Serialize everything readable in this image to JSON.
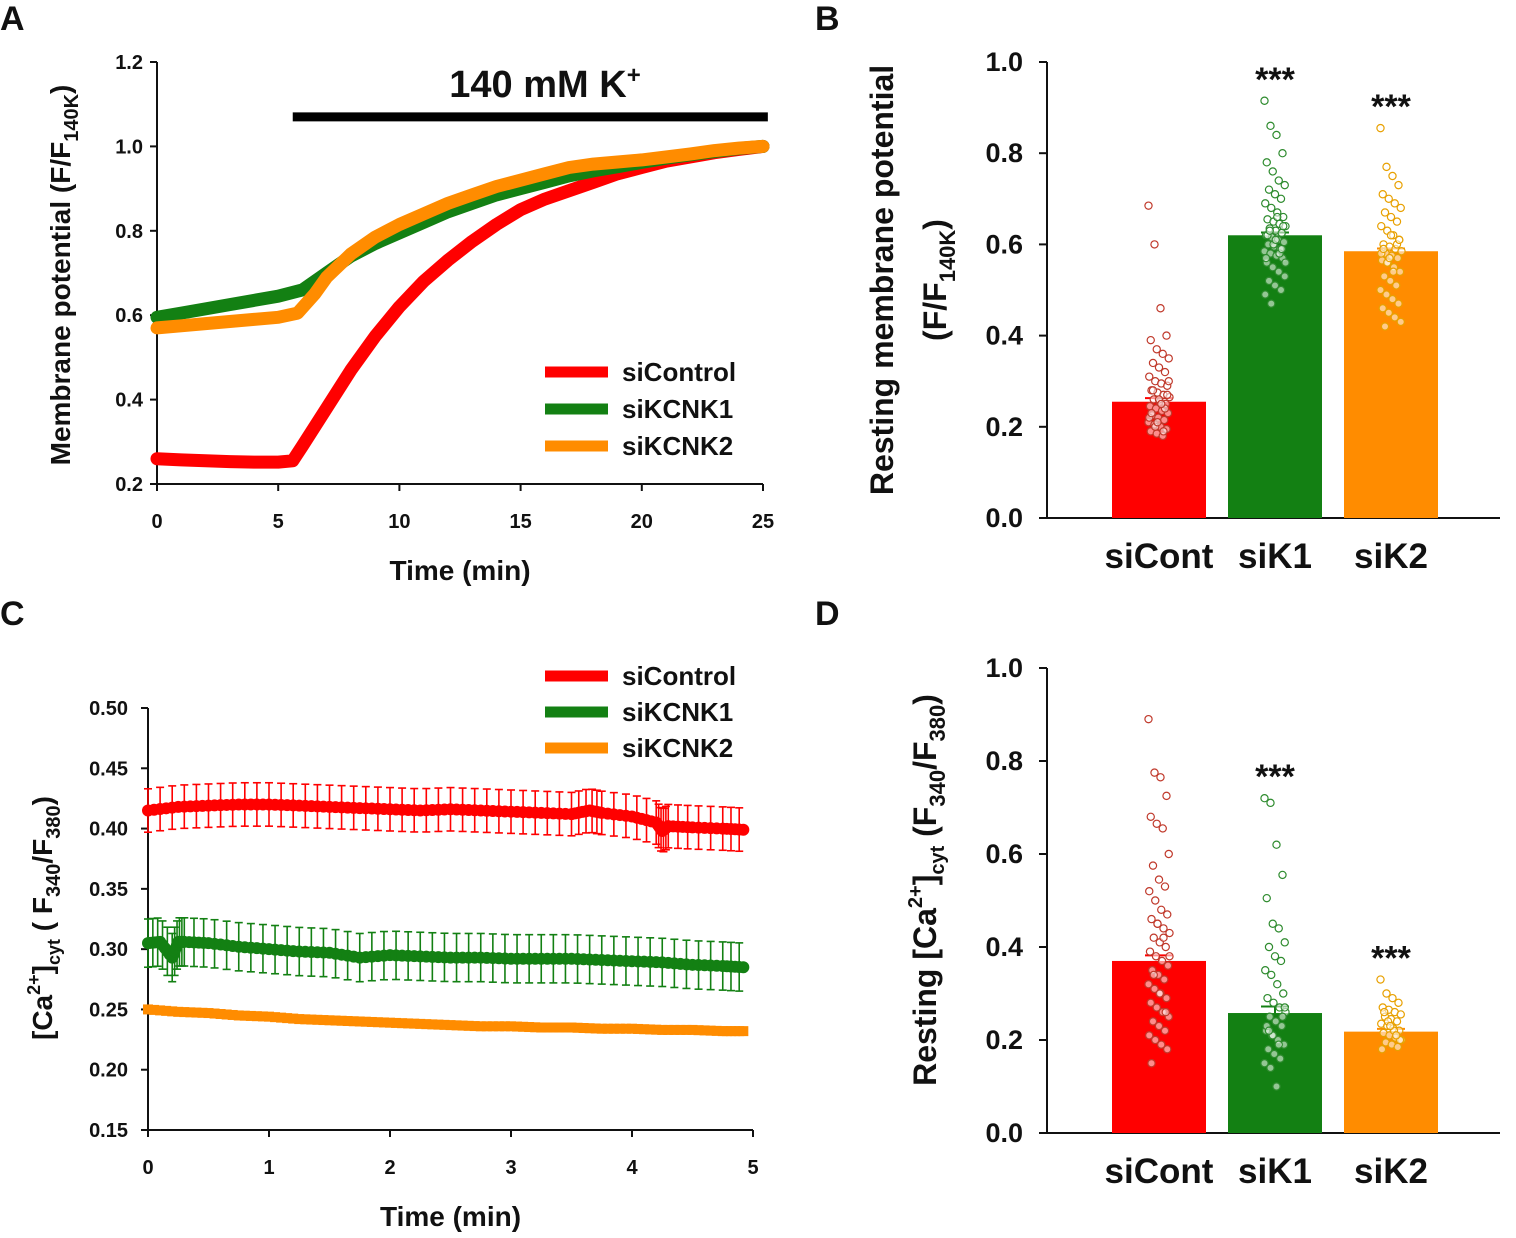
{
  "colors": {
    "siControl": "#ff0000",
    "siKCNK1": "#138013",
    "siKCNK2": "#ff8c00",
    "axis": "#111111",
    "sig_dots_red": "#c0392b",
    "sig_dots_green": "#2e8b2e",
    "sig_dots_orange": "#e8a000"
  },
  "chart_data": [
    {
      "panel": "A",
      "type": "line",
      "xlabel": "Time (min)",
      "ylabel": "Membrane potential (F/F140K)",
      "ylabel_main": "Membrane potential (F/F",
      "ylabel_sub": "140K",
      "ylabel_close": ")",
      "xlim": [
        0,
        25
      ],
      "ylim": [
        0.2,
        1.2
      ],
      "xticks": [
        "0",
        "5",
        "10",
        "15",
        "20",
        "25"
      ],
      "yticks": [
        "0.2",
        "0.4",
        "0.6",
        "0.8",
        "1.0",
        "1.2"
      ],
      "annotation": {
        "text": "140 mM K",
        "sup": "+",
        "bar_start": 5.6,
        "bar_end": 25.2,
        "bar_y": 1.07
      },
      "legend": [
        "siControl",
        "siKCNK1",
        "siKCNK2"
      ],
      "legend_position": "lower-right",
      "series": [
        {
          "name": "siControl",
          "x": [
            0,
            1,
            2,
            3,
            4,
            5,
            5.6,
            6,
            7,
            8,
            9,
            10,
            11,
            12,
            13,
            14,
            15,
            16,
            17,
            18,
            19,
            20,
            21,
            22,
            23,
            24,
            25
          ],
          "y": [
            0.26,
            0.257,
            0.255,
            0.253,
            0.252,
            0.252,
            0.255,
            0.29,
            0.38,
            0.47,
            0.55,
            0.62,
            0.68,
            0.73,
            0.775,
            0.815,
            0.85,
            0.875,
            0.895,
            0.915,
            0.935,
            0.95,
            0.965,
            0.975,
            0.985,
            0.993,
            1.0
          ]
        },
        {
          "name": "siKCNK1",
          "x": [
            0,
            1,
            2,
            3,
            4,
            5,
            6,
            7,
            8,
            9,
            10,
            11,
            12,
            13,
            14,
            15,
            16,
            17,
            18,
            19,
            20,
            21,
            22,
            23,
            24,
            25
          ],
          "y": [
            0.595,
            0.605,
            0.615,
            0.625,
            0.635,
            0.645,
            0.66,
            0.7,
            0.74,
            0.77,
            0.795,
            0.82,
            0.845,
            0.865,
            0.885,
            0.9,
            0.915,
            0.93,
            0.942,
            0.952,
            0.962,
            0.972,
            0.98,
            0.988,
            0.995,
            1.0
          ]
        },
        {
          "name": "siKCNK2",
          "x": [
            0,
            1,
            2,
            3,
            4,
            5,
            5.8,
            6.5,
            7,
            8,
            9,
            10,
            11,
            12,
            13,
            14,
            15,
            16,
            17,
            18,
            19,
            20,
            21,
            22,
            23,
            24,
            25
          ],
          "y": [
            0.57,
            0.575,
            0.58,
            0.585,
            0.59,
            0.595,
            0.605,
            0.65,
            0.69,
            0.745,
            0.785,
            0.815,
            0.84,
            0.865,
            0.885,
            0.905,
            0.92,
            0.935,
            0.95,
            0.958,
            0.963,
            0.968,
            0.975,
            0.982,
            0.99,
            0.996,
            1.0
          ]
        }
      ]
    },
    {
      "panel": "B",
      "type": "bar",
      "categories": [
        "siCont",
        "siK1",
        "siK2"
      ],
      "values": [
        0.255,
        0.62,
        0.585
      ],
      "errors": [
        0.008,
        0.006,
        0.006
      ],
      "significance": [
        "",
        "***",
        "***"
      ],
      "ylabel_line1": "Resting membrane potential",
      "ylabel_line2_main": "(F/F",
      "ylabel_line2_sub": "140K",
      "ylabel_line2_close": ")",
      "ylim": [
        0,
        1.0
      ],
      "yticks": [
        "0.0",
        "0.2",
        "0.4",
        "0.6",
        "0.8",
        "1.0"
      ],
      "scatter": [
        [
          0.685,
          0.6,
          0.46,
          0.4,
          0.39,
          0.37,
          0.36,
          0.35,
          0.34,
          0.33,
          0.32,
          0.31,
          0.3,
          0.295,
          0.29,
          0.28,
          0.275,
          0.27,
          0.265,
          0.26,
          0.255,
          0.25,
          0.245,
          0.24,
          0.235,
          0.23,
          0.225,
          0.22,
          0.215,
          0.21,
          0.205,
          0.2,
          0.195,
          0.19,
          0.185,
          0.18,
          0.3,
          0.28,
          0.26,
          0.24,
          0.22,
          0.2,
          0.25,
          0.27,
          0.23,
          0.21,
          0.19
        ],
        [
          0.915,
          0.86,
          0.84,
          0.8,
          0.78,
          0.76,
          0.74,
          0.73,
          0.72,
          0.71,
          0.7,
          0.69,
          0.68,
          0.67,
          0.66,
          0.655,
          0.65,
          0.645,
          0.64,
          0.635,
          0.63,
          0.625,
          0.62,
          0.615,
          0.61,
          0.605,
          0.6,
          0.595,
          0.59,
          0.585,
          0.58,
          0.575,
          0.57,
          0.56,
          0.55,
          0.54,
          0.53,
          0.52,
          0.51,
          0.5,
          0.49,
          0.47,
          0.66,
          0.64,
          0.62,
          0.6,
          0.58,
          0.56,
          0.63,
          0.61,
          0.59,
          0.57
        ],
        [
          0.855,
          0.77,
          0.75,
          0.73,
          0.71,
          0.7,
          0.69,
          0.68,
          0.67,
          0.66,
          0.65,
          0.64,
          0.63,
          0.62,
          0.61,
          0.6,
          0.595,
          0.59,
          0.585,
          0.58,
          0.575,
          0.57,
          0.565,
          0.56,
          0.55,
          0.54,
          0.53,
          0.52,
          0.51,
          0.5,
          0.49,
          0.48,
          0.47,
          0.46,
          0.45,
          0.44,
          0.43,
          0.42,
          0.62,
          0.6,
          0.58,
          0.56,
          0.54,
          0.61,
          0.59,
          0.57
        ]
      ]
    },
    {
      "panel": "C",
      "type": "line",
      "xlabel": "Time (min)",
      "ylabel": "[Ca2+]cyt ( F340/F380)",
      "xlim": [
        0,
        5
      ],
      "ylim": [
        0.15,
        0.5
      ],
      "xticks": [
        "0",
        "1",
        "2",
        "3",
        "4",
        "5"
      ],
      "yticks": [
        "0.15",
        "0.20",
        "0.25",
        "0.30",
        "0.35",
        "0.40",
        "0.45",
        "0.50"
      ],
      "legend": [
        "siControl",
        "siKCNK1",
        "siKCNK2"
      ],
      "legend_position": "top-right",
      "series": [
        {
          "name": "siControl",
          "x": [
            0,
            0.25,
            0.5,
            0.75,
            1.0,
            1.25,
            1.5,
            1.75,
            2.0,
            2.25,
            2.5,
            2.75,
            3.0,
            3.25,
            3.5,
            3.65,
            3.75,
            4.0,
            4.2,
            4.25,
            4.3,
            4.5,
            4.75,
            4.92
          ],
          "y": [
            0.415,
            0.418,
            0.419,
            0.42,
            0.42,
            0.419,
            0.418,
            0.417,
            0.416,
            0.415,
            0.416,
            0.415,
            0.414,
            0.413,
            0.412,
            0.415,
            0.413,
            0.41,
            0.405,
            0.398,
            0.402,
            0.401,
            0.4,
            0.399
          ],
          "err": 0.018
        },
        {
          "name": "siKCNK1",
          "x": [
            0,
            0.1,
            0.2,
            0.25,
            0.3,
            0.5,
            0.75,
            1.0,
            1.25,
            1.5,
            1.75,
            2.0,
            2.25,
            2.5,
            2.75,
            3.0,
            3.25,
            3.5,
            3.75,
            4.0,
            4.25,
            4.5,
            4.75,
            4.92
          ],
          "y": [
            0.305,
            0.306,
            0.293,
            0.306,
            0.306,
            0.305,
            0.302,
            0.3,
            0.298,
            0.297,
            0.293,
            0.295,
            0.294,
            0.293,
            0.293,
            0.292,
            0.292,
            0.292,
            0.291,
            0.29,
            0.289,
            0.287,
            0.286,
            0.285
          ],
          "err": 0.02
        },
        {
          "name": "siKCNK2",
          "x": [
            0,
            0.25,
            0.5,
            0.75,
            1.0,
            1.25,
            1.5,
            1.75,
            2.0,
            2.25,
            2.5,
            2.75,
            3.0,
            3.25,
            3.5,
            3.75,
            4.0,
            4.25,
            4.5,
            4.75,
            4.92
          ],
          "y": [
            0.25,
            0.248,
            0.247,
            0.245,
            0.244,
            0.242,
            0.241,
            0.24,
            0.239,
            0.238,
            0.237,
            0.236,
            0.236,
            0.235,
            0.235,
            0.234,
            0.234,
            0.233,
            0.233,
            0.232,
            0.232
          ],
          "err": 0.003
        }
      ]
    },
    {
      "panel": "D",
      "type": "bar",
      "categories": [
        "siCont",
        "siK1",
        "siK2"
      ],
      "values": [
        0.37,
        0.258,
        0.218
      ],
      "errors": [
        0.012,
        0.014,
        0.006
      ],
      "significance": [
        "",
        "***",
        "***"
      ],
      "ylabel": "Resting [Ca2+]cyt (F340/F380)",
      "ylim": [
        0,
        1.0
      ],
      "yticks": [
        "0.0",
        "0.2",
        "0.4",
        "0.6",
        "0.8",
        "1.0"
      ],
      "scatter": [
        [
          0.89,
          0.775,
          0.765,
          0.725,
          0.68,
          0.665,
          0.655,
          0.6,
          0.575,
          0.545,
          0.53,
          0.52,
          0.5,
          0.48,
          0.47,
          0.46,
          0.45,
          0.44,
          0.43,
          0.42,
          0.41,
          0.4,
          0.39,
          0.38,
          0.37,
          0.36,
          0.35,
          0.34,
          0.33,
          0.32,
          0.31,
          0.3,
          0.29,
          0.28,
          0.27,
          0.26,
          0.25,
          0.24,
          0.23,
          0.22,
          0.21,
          0.2,
          0.19,
          0.18,
          0.15,
          0.45,
          0.42,
          0.38,
          0.34,
          0.3,
          0.26
        ],
        [
          0.72,
          0.71,
          0.62,
          0.555,
          0.505,
          0.45,
          0.44,
          0.41,
          0.4,
          0.38,
          0.37,
          0.35,
          0.34,
          0.32,
          0.3,
          0.29,
          0.28,
          0.27,
          0.26,
          0.25,
          0.24,
          0.23,
          0.22,
          0.21,
          0.2,
          0.19,
          0.18,
          0.17,
          0.16,
          0.15,
          0.14,
          0.1,
          0.25,
          0.23,
          0.21,
          0.19,
          0.27,
          0.22
        ],
        [
          0.33,
          0.3,
          0.29,
          0.28,
          0.27,
          0.265,
          0.26,
          0.255,
          0.25,
          0.245,
          0.24,
          0.235,
          0.23,
          0.225,
          0.22,
          0.215,
          0.21,
          0.205,
          0.2,
          0.195,
          0.19,
          0.185,
          0.18,
          0.24,
          0.22,
          0.2,
          0.26,
          0.23,
          0.21
        ]
      ]
    }
  ],
  "panel_labels": [
    "A",
    "B",
    "C",
    "D"
  ],
  "ca_label": {
    "open": "[Ca",
    "sup": "2+",
    "close": "]",
    "sub": "cyt",
    "rest1": " ( F",
    "sub1": "340",
    "rest2": "/F",
    "sub2": "380",
    "rest3": ")",
    "d_prefix": "Resting [Ca",
    "d_rest1": " (F",
    "d_rest3": ")"
  }
}
